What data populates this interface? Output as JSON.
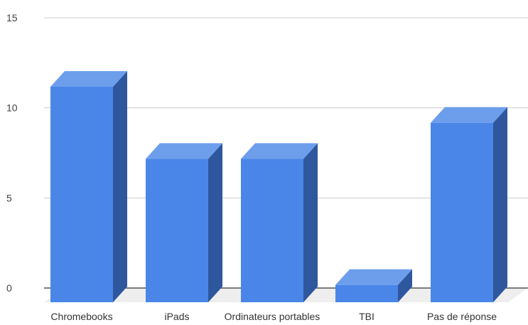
{
  "chart_data": {
    "type": "bar",
    "style": "3d",
    "categories": [
      "Chromebooks",
      "iPads",
      "Ordinateurs portables",
      "TBI",
      "Pas de réponse"
    ],
    "values": [
      12,
      8,
      8,
      1,
      10
    ],
    "ylim": [
      0,
      15
    ],
    "yticks": [
      0,
      5,
      10,
      15
    ],
    "grid": true,
    "legend": "none",
    "colors": {
      "front": "#4a86e8",
      "top": "#6d9eeb",
      "side": "#2e579e",
      "floor": "#eeeeee",
      "gridline": "#cccccc",
      "axis": "#333333"
    }
  }
}
